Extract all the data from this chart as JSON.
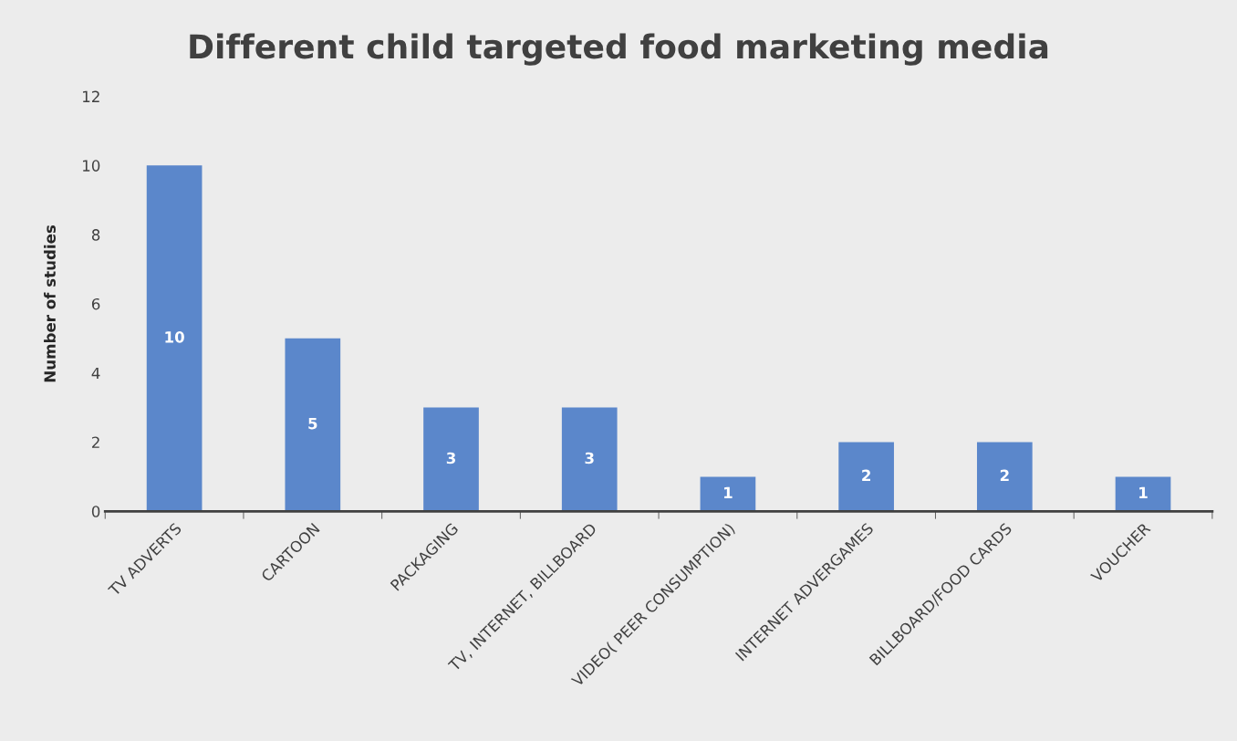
{
  "chart_data": {
    "type": "bar",
    "title": "Different child targeted food marketing media",
    "ylabel": "Number of studies",
    "categories": [
      "TV ADVERTS",
      "CARTOON",
      "PACKAGING",
      "TV, INTERNET, BILLBOARD",
      "VIDEO( PEER CONSUMPTION)",
      "INTERNET ADVERGAMES",
      "BILLBOARD/FOOD CARDS",
      "VOUCHER"
    ],
    "values": [
      10,
      5,
      3,
      3,
      1,
      2,
      2,
      1
    ],
    "color": "#5b87cb",
    "ylim": [
      0,
      12
    ],
    "yticks": [
      0,
      2,
      4,
      6,
      8,
      10,
      12
    ],
    "grid": false,
    "data_labels": true
  }
}
